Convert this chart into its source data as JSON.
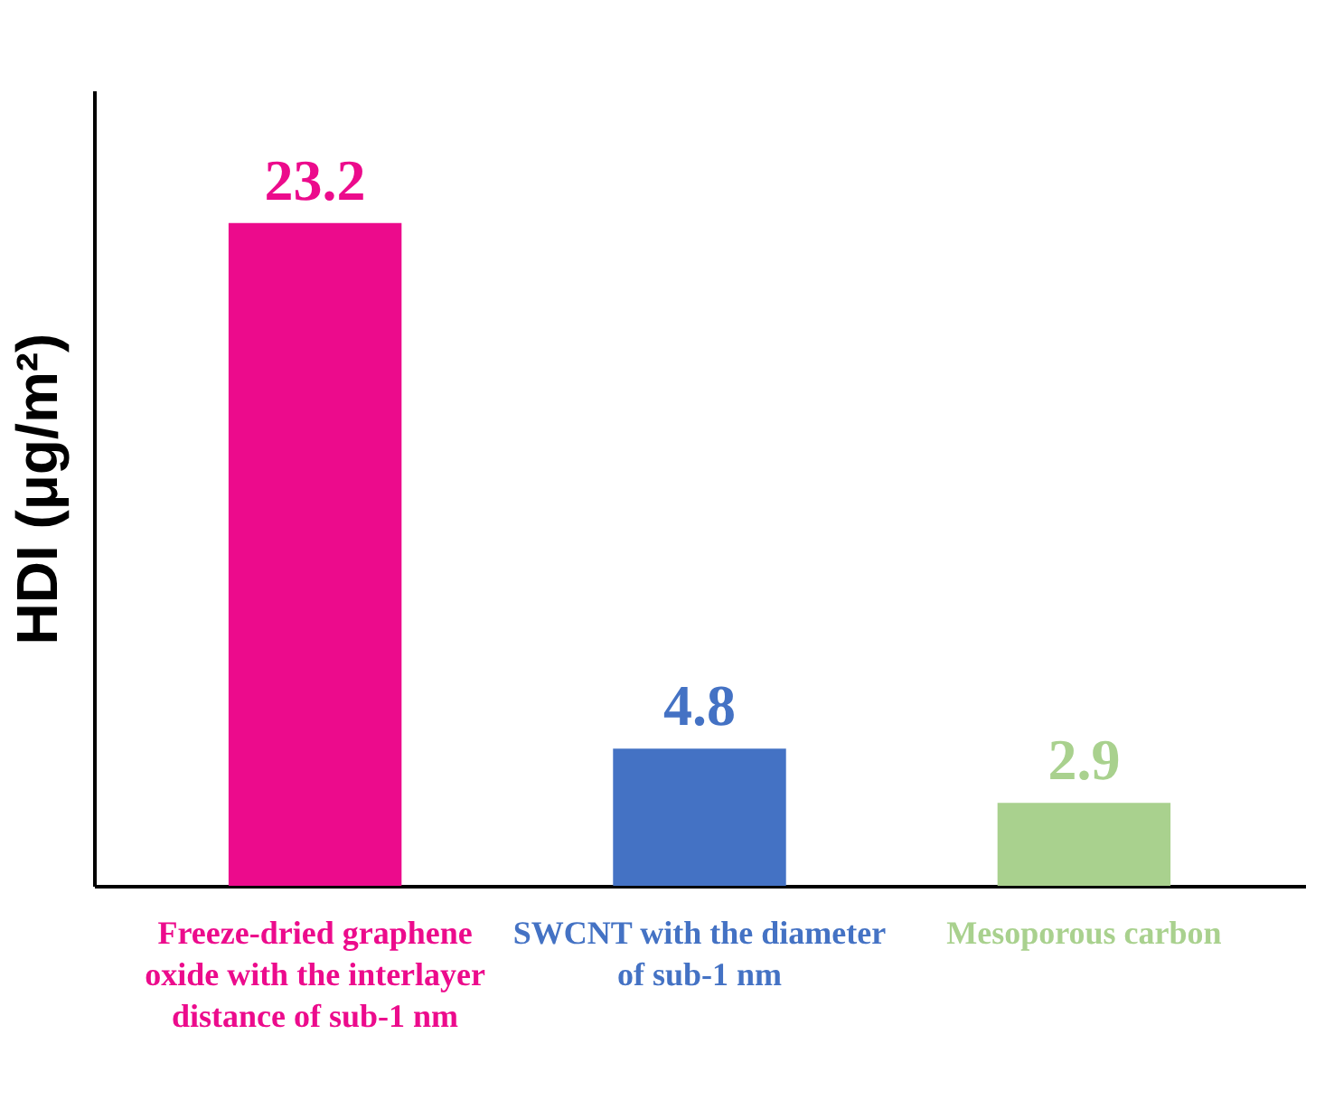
{
  "chart_data": {
    "type": "bar",
    "ylabel": "HDI (μg/m²)",
    "categories": [
      "Freeze-dried graphene oxide with the interlayer distance of sub-1 nm",
      "SWCNT with the diameter of sub-1 nm",
      "Mesoporous carbon"
    ],
    "values": [
      23.2,
      4.8,
      2.9
    ],
    "colors": [
      "#ec0b8c",
      "#4472c4",
      "#a9d18e"
    ],
    "data_labels": true
  }
}
